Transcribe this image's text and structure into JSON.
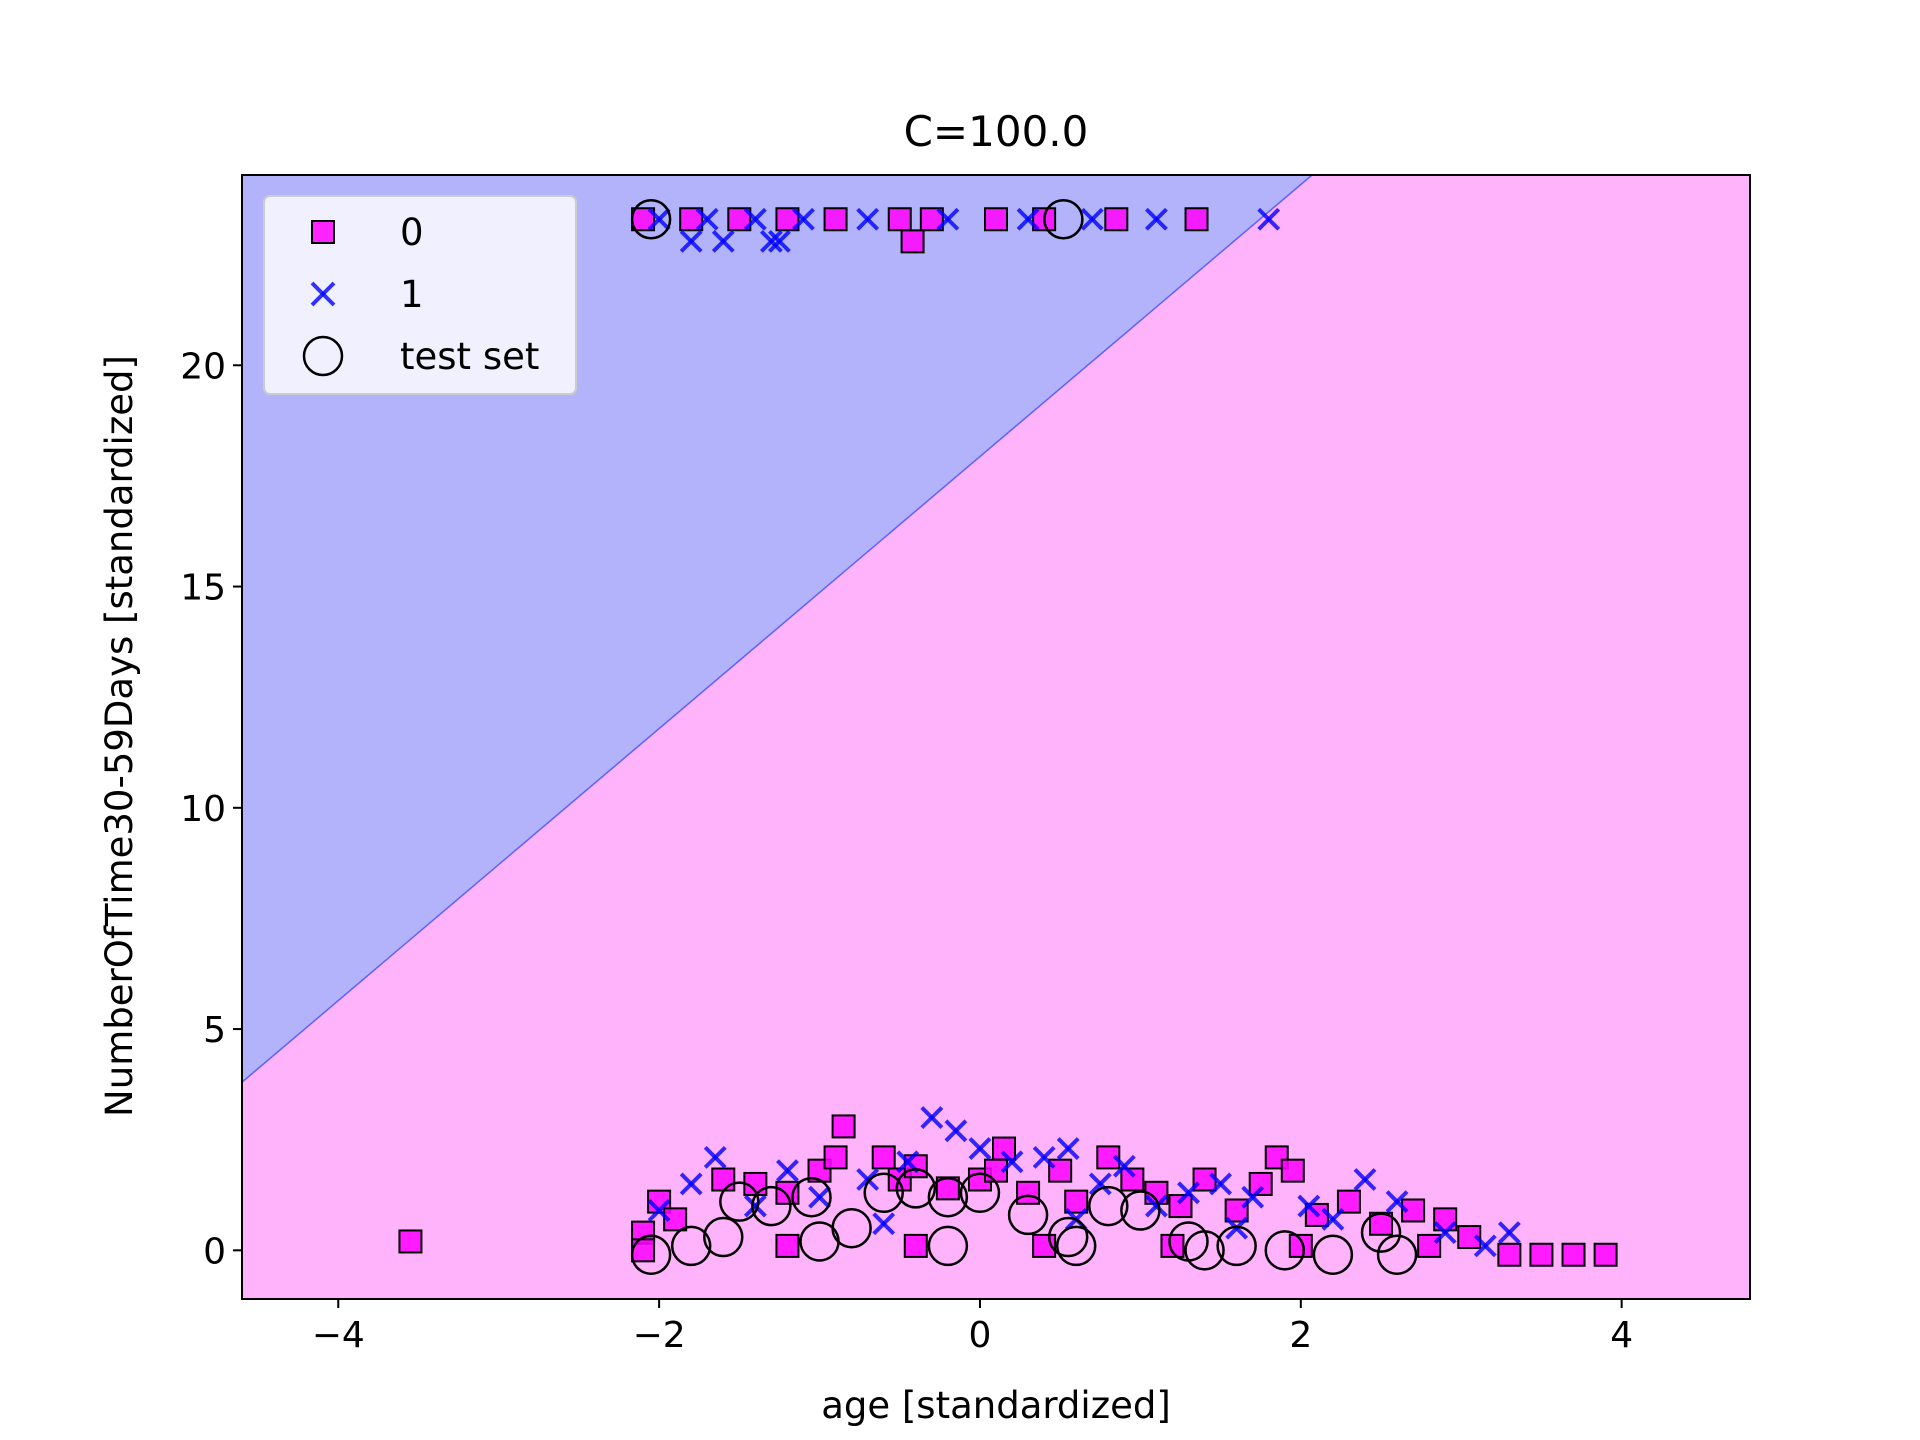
{
  "chart_data": {
    "type": "scatter",
    "title": "C=100.0",
    "xlabel": "age [standardized]",
    "ylabel": "NumberOfTime30-59Days [standardized]",
    "xlim": [
      -4.6,
      4.8
    ],
    "ylim": [
      -1.1,
      24.3
    ],
    "xticks": [
      -4,
      -2,
      0,
      2,
      4
    ],
    "xtick_labels": [
      "−4",
      "−2",
      "0",
      "2",
      "4"
    ],
    "yticks": [
      0,
      5,
      10,
      15,
      20
    ],
    "ytick_labels": [
      "0",
      "5",
      "10",
      "15",
      "20"
    ],
    "grid": false,
    "legend_position": "top-left",
    "decision_boundary": {
      "type": "linear",
      "points": [
        [
          -4.6,
          3.8
        ],
        [
          2.07,
          24.3
        ]
      ],
      "region_above": {
        "class": "1",
        "color": "#b3b3fb"
      },
      "region_below": {
        "class": "0",
        "color": "#ffb3fb"
      }
    },
    "legend": [
      {
        "label": "0",
        "marker": "square",
        "color": "#ff00ff"
      },
      {
        "label": "1",
        "marker": "x",
        "color": "#0000ff"
      },
      {
        "label": "test set",
        "marker": "open-circle",
        "color": "#000000"
      }
    ],
    "series": [
      {
        "name": "0",
        "marker": "square",
        "color": "#ff00ff",
        "points": [
          [
            -3.55,
            0.2
          ],
          [
            -2.1,
            23.3
          ],
          [
            -1.8,
            23.3
          ],
          [
            -1.5,
            23.3
          ],
          [
            -1.2,
            23.3
          ],
          [
            -0.9,
            23.3
          ],
          [
            -0.5,
            23.3
          ],
          [
            -0.3,
            23.3
          ],
          [
            0.1,
            23.3
          ],
          [
            0.4,
            23.3
          ],
          [
            0.85,
            23.3
          ],
          [
            1.35,
            23.3
          ],
          [
            -0.42,
            22.8
          ],
          [
            -2.1,
            0.4
          ],
          [
            -2.0,
            1.1
          ],
          [
            -1.9,
            0.7
          ],
          [
            -1.6,
            1.6
          ],
          [
            -1.4,
            1.5
          ],
          [
            -1.2,
            1.3
          ],
          [
            -1.0,
            1.8
          ],
          [
            -0.9,
            2.1
          ],
          [
            -0.85,
            2.8
          ],
          [
            -0.6,
            2.1
          ],
          [
            -0.5,
            1.6
          ],
          [
            -0.4,
            1.9
          ],
          [
            -0.2,
            1.4
          ],
          [
            0.0,
            1.6
          ],
          [
            0.1,
            1.8
          ],
          [
            0.15,
            2.3
          ],
          [
            0.3,
            1.3
          ],
          [
            0.5,
            1.8
          ],
          [
            0.6,
            1.1
          ],
          [
            0.8,
            2.1
          ],
          [
            0.95,
            1.6
          ],
          [
            1.1,
            1.3
          ],
          [
            1.25,
            1.0
          ],
          [
            1.4,
            1.6
          ],
          [
            1.6,
            0.9
          ],
          [
            1.75,
            1.5
          ],
          [
            1.85,
            2.1
          ],
          [
            1.95,
            1.8
          ],
          [
            2.1,
            0.8
          ],
          [
            2.3,
            1.1
          ],
          [
            2.5,
            0.6
          ],
          [
            2.7,
            0.9
          ],
          [
            2.9,
            0.7
          ],
          [
            3.05,
            0.3
          ],
          [
            3.3,
            -0.1
          ],
          [
            3.5,
            -0.1
          ],
          [
            3.7,
            -0.1
          ],
          [
            3.9,
            -0.1
          ],
          [
            2.8,
            0.1
          ],
          [
            2.0,
            0.1
          ],
          [
            1.2,
            0.1
          ],
          [
            0.4,
            0.1
          ],
          [
            -0.4,
            0.1
          ],
          [
            -1.2,
            0.1
          ],
          [
            -2.1,
            0.0
          ]
        ]
      },
      {
        "name": "1",
        "marker": "x",
        "color": "#0000ff",
        "points": [
          [
            -2.0,
            23.3
          ],
          [
            -1.7,
            23.3
          ],
          [
            -1.4,
            23.3
          ],
          [
            -1.1,
            23.3
          ],
          [
            -0.7,
            23.3
          ],
          [
            -0.2,
            23.3
          ],
          [
            0.3,
            23.3
          ],
          [
            0.7,
            23.3
          ],
          [
            1.1,
            23.3
          ],
          [
            1.8,
            23.3
          ],
          [
            -1.8,
            22.8
          ],
          [
            -1.6,
            22.8
          ],
          [
            -1.3,
            22.8
          ],
          [
            -1.25,
            22.8
          ],
          [
            -2.0,
            0.9
          ],
          [
            -1.8,
            1.5
          ],
          [
            -1.65,
            2.1
          ],
          [
            -1.4,
            1.0
          ],
          [
            -1.2,
            1.8
          ],
          [
            -1.0,
            1.2
          ],
          [
            -0.7,
            1.6
          ],
          [
            -0.45,
            2.0
          ],
          [
            -0.3,
            3.0
          ],
          [
            -0.15,
            2.7
          ],
          [
            0.0,
            2.3
          ],
          [
            0.2,
            2.0
          ],
          [
            0.4,
            2.1
          ],
          [
            0.55,
            2.3
          ],
          [
            0.75,
            1.5
          ],
          [
            0.9,
            1.9
          ],
          [
            1.1,
            1.0
          ],
          [
            1.3,
            1.3
          ],
          [
            1.5,
            1.5
          ],
          [
            1.7,
            1.2
          ],
          [
            2.05,
            1.0
          ],
          [
            2.2,
            0.7
          ],
          [
            2.4,
            1.6
          ],
          [
            2.6,
            1.1
          ],
          [
            2.9,
            0.4
          ],
          [
            3.15,
            0.1
          ],
          [
            3.3,
            0.4
          ],
          [
            -0.6,
            0.6
          ],
          [
            0.6,
            0.7
          ],
          [
            1.6,
            0.5
          ]
        ]
      },
      {
        "name": "test set",
        "marker": "open-circle",
        "color": "#000000",
        "points": [
          [
            -2.05,
            23.3
          ],
          [
            0.52,
            23.3
          ],
          [
            -2.05,
            -0.1
          ],
          [
            -1.8,
            0.1
          ],
          [
            -1.6,
            0.3
          ],
          [
            -1.5,
            1.1
          ],
          [
            -1.3,
            1.0
          ],
          [
            -1.05,
            1.2
          ],
          [
            -0.8,
            0.5
          ],
          [
            -0.6,
            1.3
          ],
          [
            -0.4,
            1.4
          ],
          [
            -0.2,
            1.2
          ],
          [
            0.0,
            1.3
          ],
          [
            0.3,
            0.8
          ],
          [
            0.55,
            0.3
          ],
          [
            0.8,
            1.0
          ],
          [
            1.0,
            0.9
          ],
          [
            1.3,
            0.2
          ],
          [
            1.6,
            0.1
          ],
          [
            1.9,
            0.0
          ],
          [
            2.2,
            -0.1
          ],
          [
            2.5,
            0.4
          ],
          [
            2.6,
            -0.1
          ],
          [
            -1.0,
            0.2
          ],
          [
            -0.2,
            0.1
          ],
          [
            0.6,
            0.1
          ],
          [
            1.4,
            0.0
          ]
        ]
      }
    ]
  }
}
